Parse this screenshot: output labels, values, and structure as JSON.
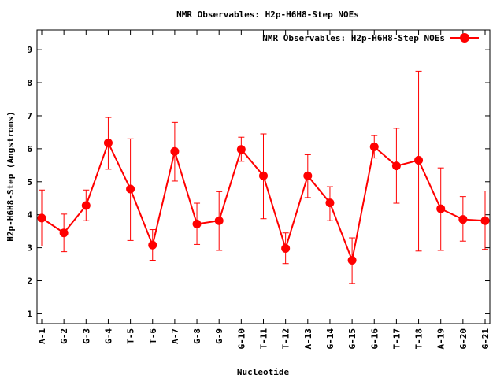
{
  "chart_data": {
    "type": "line",
    "title": "NMR Observables: H2p-H6H8-Step NOEs",
    "xlabel": "Nucleotide",
    "ylabel": "H2p-H6H8-Step (Angstroms)",
    "ylim": [
      0.7,
      9.6
    ],
    "yticks": [
      "1",
      "2",
      "3",
      "4",
      "5",
      "6",
      "7",
      "8",
      "9"
    ],
    "grid": false,
    "legend_position": "top-right",
    "categories": [
      "A-1",
      "G-2",
      "G-3",
      "G-4",
      "T-5",
      "T-6",
      "A-7",
      "G-8",
      "G-9",
      "G-10",
      "T-11",
      "T-12",
      "A-13",
      "G-14",
      "G-15",
      "G-16",
      "T-17",
      "T-18",
      "A-19",
      "G-20",
      "G-21"
    ],
    "series": [
      {
        "name": "NMR Observables: H2p-H6H8-Step NOEs",
        "color": "#ff0000",
        "values": [
          3.9,
          3.45,
          4.28,
          6.18,
          4.78,
          3.08,
          5.92,
          3.72,
          3.82,
          5.98,
          5.18,
          2.98,
          5.18,
          4.36,
          2.62,
          6.06,
          5.48,
          5.65,
          4.18,
          3.86,
          3.82
        ],
        "err_low": [
          3.05,
          2.88,
          3.82,
          5.38,
          3.22,
          2.62,
          5.02,
          3.1,
          2.92,
          5.62,
          3.88,
          2.52,
          4.52,
          3.82,
          1.92,
          5.72,
          4.35,
          2.9,
          2.92,
          3.2,
          2.95
        ],
        "err_high": [
          4.75,
          4.02,
          4.75,
          6.95,
          6.3,
          3.55,
          6.8,
          4.35,
          4.7,
          6.35,
          6.45,
          3.45,
          5.82,
          4.85,
          3.3,
          6.4,
          6.62,
          8.35,
          5.42,
          4.55,
          4.72
        ]
      }
    ]
  }
}
